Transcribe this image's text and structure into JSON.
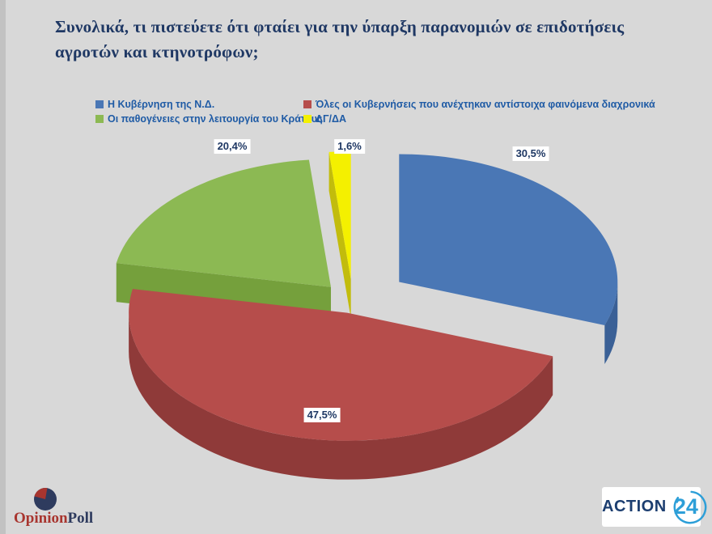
{
  "title": {
    "line1": "Συνολικά, τι πιστεύετε ότι φταίει για την ύπαρξη παρανομιών σε επιδοτήσεις",
    "line2": "αγροτών και κτηνοτρόφων;"
  },
  "chart_data": {
    "type": "pie",
    "style": "3d-exploded",
    "start_angle_deg": 0,
    "direction": "clockwise",
    "legend_position": "top",
    "background_color": "#D8D8D8",
    "label_text_color": "#1F3864",
    "legend_text_color": "#1F5BA5",
    "slices": [
      {
        "name": "Η Κυβέρνηση της Ν.Δ.",
        "value": 30.5,
        "label": "30,5%",
        "color": "#4A77B5",
        "side_color": "#3A6096"
      },
      {
        "name": "Όλες οι Κυβερνήσεις που ανέχτηκαν αντίστοιχα φαινόμενα διαχρονικά",
        "value": 47.5,
        "label": "47,5%",
        "color": "#B64D4B",
        "side_color": "#8F3A39"
      },
      {
        "name": "Οι παθογένειες στην λειτουργία του Κράτους",
        "value": 20.4,
        "label": "20,4%",
        "color": "#8CB953",
        "side_color": "#75A03C"
      },
      {
        "name": "ΔΓ/ΔΑ",
        "value": 1.6,
        "label": "1,6%",
        "color": "#F4F000",
        "side_color": "#C2BC0C"
      }
    ]
  },
  "footer": {
    "opinionpoll": {
      "part1": "Opinion",
      "part2": "Poll"
    },
    "action24": {
      "word": "ACTION",
      "number": "24"
    }
  }
}
